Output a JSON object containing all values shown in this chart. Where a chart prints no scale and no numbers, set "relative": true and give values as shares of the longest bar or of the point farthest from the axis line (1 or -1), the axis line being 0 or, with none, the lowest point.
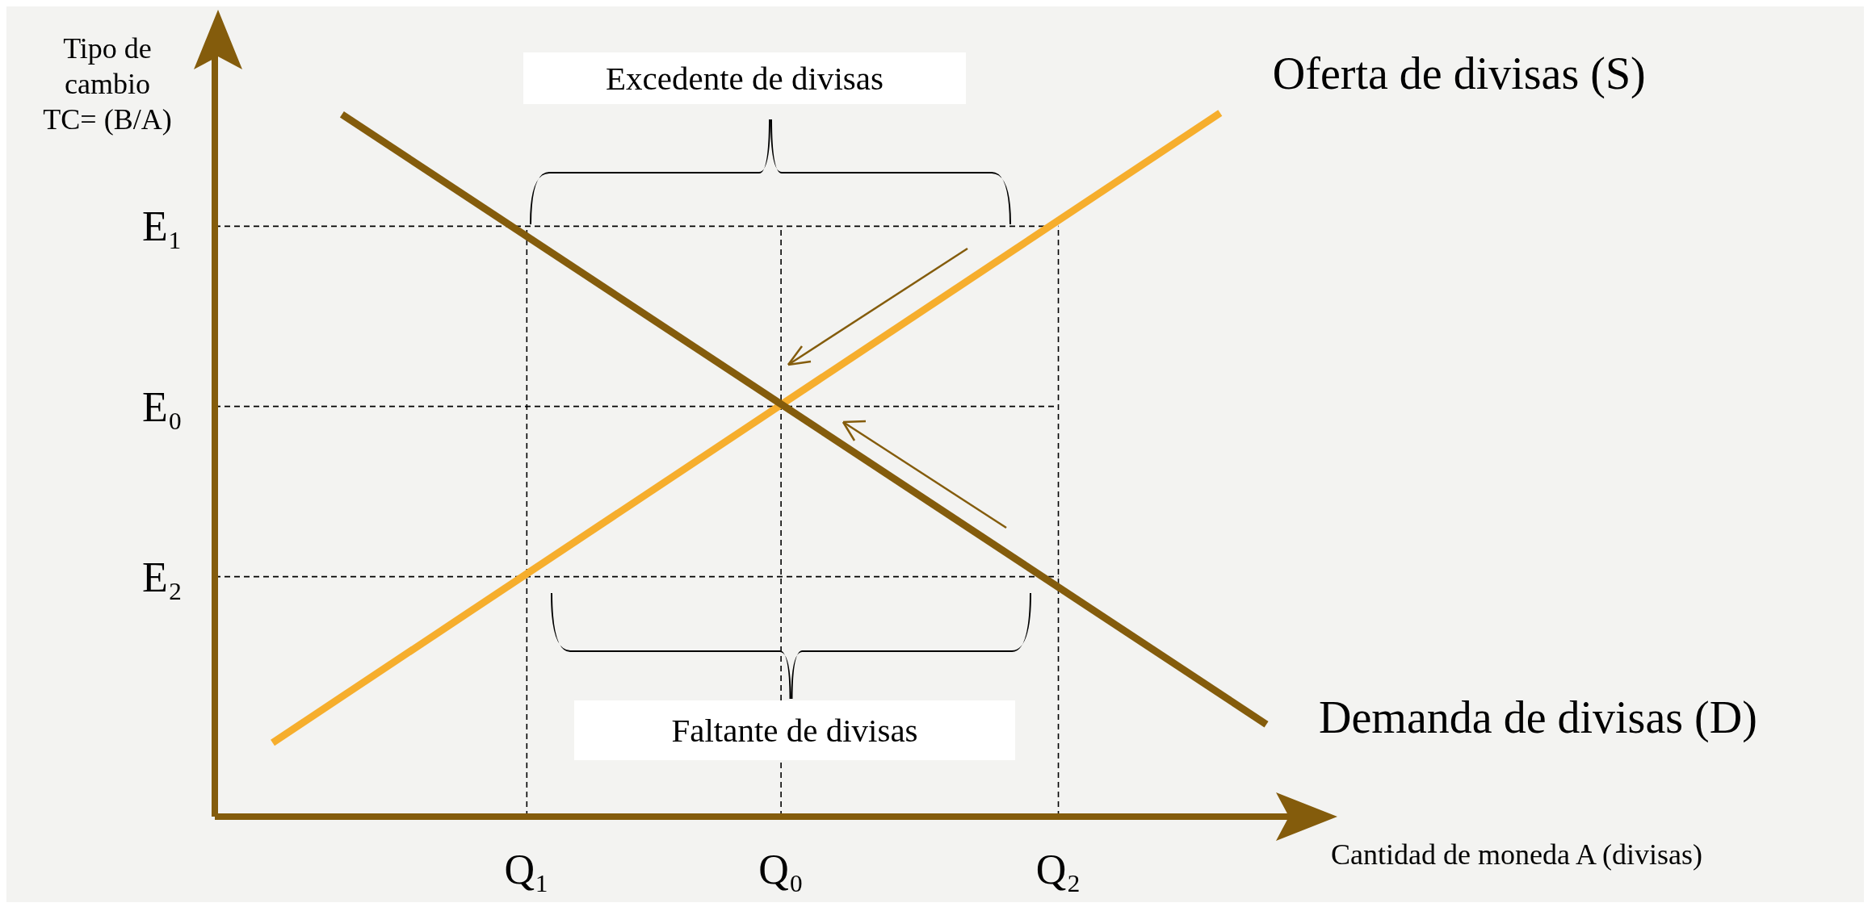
{
  "chart_data": {
    "type": "line",
    "relative": true,
    "xlabel": "Cantidad de moneda A (divisas)",
    "ylabel": "Tipo de cambio TC= (B/A)",
    "legend": false,
    "grid": false,
    "marker": "none",
    "categories": [
      null,
      null,
      null,
      null,
      null,
      null,
      null,
      null,
      null,
      null,
      null,
      null,
      null,
      "Q₁",
      null,
      null,
      null,
      null,
      null,
      null,
      null,
      null,
      null,
      null,
      "Q₀",
      null,
      null,
      null,
      null,
      null,
      null,
      null,
      null,
      null,
      null,
      null,
      "Q₂",
      null,
      null,
      null,
      null,
      null,
      null,
      null,
      null,
      null,
      null
    ],
    "series": [
      {
        "name": "Oferta de divisas (S)",
        "color": "#f6ae2d",
        "values": [
          null,
          null,
          0.105,
          null,
          null,
          null,
          null,
          null,
          null,
          null,
          null,
          null,
          null,
          null,
          null,
          null,
          null,
          null,
          null,
          null,
          null,
          null,
          null,
          null,
          null,
          null,
          null,
          null,
          null,
          null,
          null,
          null,
          null,
          null,
          null,
          null,
          null,
          null,
          null,
          null,
          null,
          null,
          null,
          1.0,
          null,
          null,
          null
        ]
      },
      {
        "name": "Demanda de divisas (D)",
        "color": "#845c0c",
        "values": [
          null,
          null,
          null,
          null,
          null,
          0.998,
          null,
          null,
          null,
          null,
          null,
          null,
          null,
          null,
          null,
          null,
          null,
          null,
          null,
          null,
          null,
          null,
          null,
          null,
          null,
          null,
          null,
          null,
          null,
          null,
          null,
          null,
          null,
          null,
          null,
          null,
          null,
          null,
          null,
          null,
          null,
          null,
          null,
          null,
          null,
          0.131,
          null
        ]
      }
    ],
    "ref_lines": [
      {
        "axis": "y",
        "value": 0.839,
        "label": "E₁",
        "line_style": "dashed",
        "color": "#000000"
      },
      {
        "axis": "y",
        "value": 0.583,
        "label": "E₀",
        "line_style": "dashed",
        "color": "#000000"
      },
      {
        "axis": "y",
        "value": 0.341,
        "label": "E₂",
        "line_style": "dashed",
        "color": "#000000"
      },
      {
        "axis": "x",
        "value": "Q₁",
        "line_style": "dashed",
        "color": "#000000"
      },
      {
        "axis": "x",
        "value": "Q₀",
        "line_style": "dashed",
        "color": "#000000"
      },
      {
        "axis": "x",
        "value": "Q₂",
        "line_style": "dashed",
        "color": "#000000"
      }
    ],
    "annotations": [
      "Excedente de divisas",
      "Faltante de divisas"
    ]
  }
}
